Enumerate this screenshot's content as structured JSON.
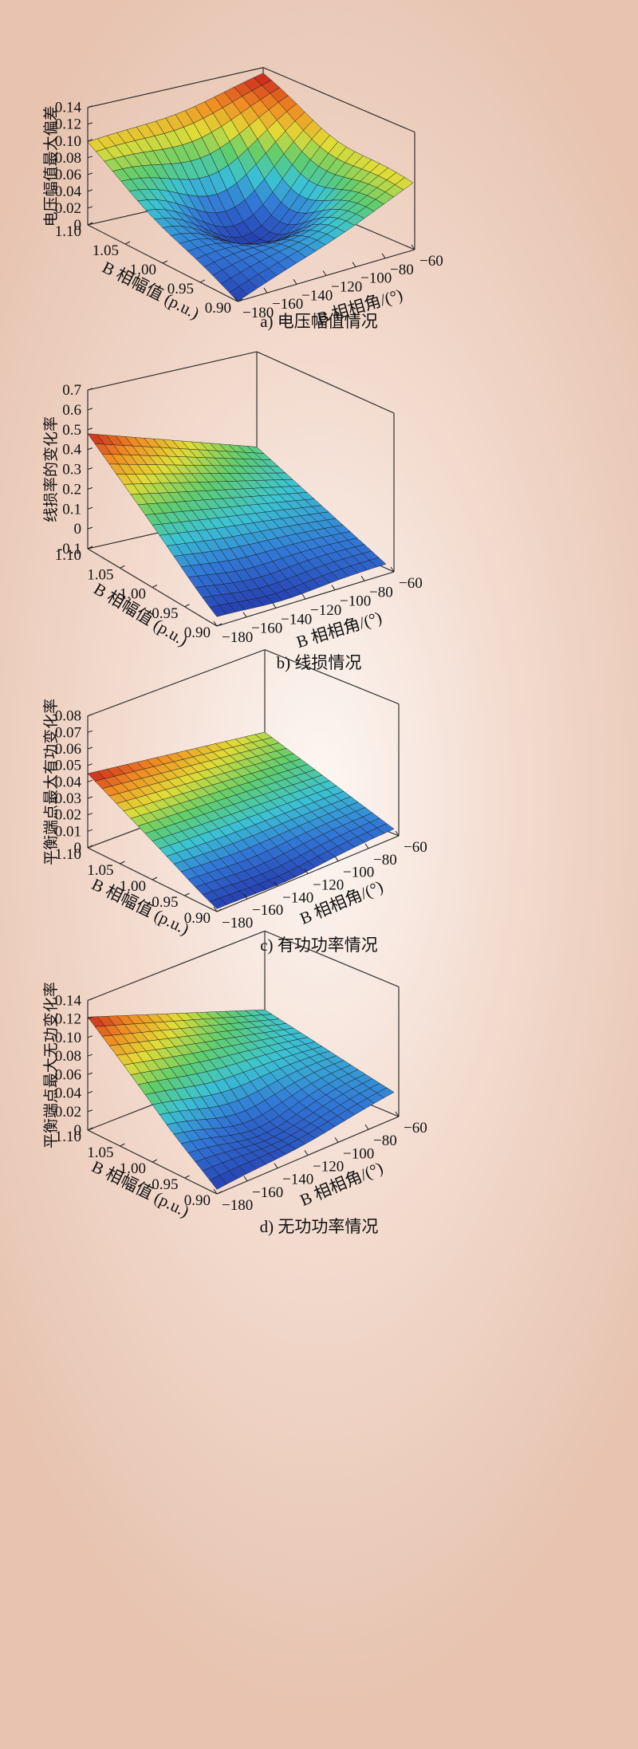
{
  "chart_data": [
    {
      "type": "surface3d",
      "caption": "a) 电压幅值情况",
      "zlabel": "电压幅值最大偏差",
      "xlabel": "B 相幅值 (p.u.)",
      "ylabel": "B 相相角/(°)",
      "x_ticks": [
        "1.10",
        "1.05",
        "1.00",
        "0.95",
        "0.90"
      ],
      "y_ticks": [
        "-180",
        "-160",
        "-140",
        "-120",
        "-100",
        "-80",
        "-60"
      ],
      "z_ticks": [
        "0",
        "0.02",
        "0.04",
        "0.06",
        "0.08",
        "0.10",
        "0.12",
        "0.14"
      ],
      "xlim": [
        0.9,
        1.1
      ],
      "ylim": [
        -180,
        -60
      ],
      "zlim": [
        0,
        0.14
      ],
      "shape": "valley",
      "surface_corners": {
        "x1.10_y-180": 0.1,
        "x1.10_y-60": 0.135,
        "x0.90_y-60": 0.095,
        "x0.90_y-180": 0.0
      },
      "min_point": {
        "x": 1.0,
        "y": -120,
        "z": 0.0
      }
    },
    {
      "type": "surface3d",
      "caption": "b) 线损情况",
      "zlabel": "线损率的变化率",
      "xlabel": "B 相幅值 (p.u.)",
      "ylabel": "B 相相角/(°)",
      "x_ticks": [
        "1.10",
        "1.05",
        "1.00",
        "0.95",
        "0.90"
      ],
      "y_ticks": [
        "-180",
        "-160",
        "-140",
        "-120",
        "-100",
        "-80",
        "-60"
      ],
      "z_ticks": [
        "-0.1",
        "0",
        "0.1",
        "0.2",
        "0.3",
        "0.4",
        "0.5",
        "0.6",
        "0.7"
      ],
      "xlim": [
        0.9,
        1.1
      ],
      "ylim": [
        -180,
        -60
      ],
      "zlim": [
        -0.1,
        0.7
      ],
      "shape": "slope",
      "surface_corners": {
        "x1.10_y-180": 0.48,
        "x1.10_y-60": 0.22,
        "x0.90_y-60": 0.02,
        "x0.90_y-180": -0.05
      },
      "min_point": {
        "x": 0.9,
        "y": -140,
        "z": -0.07
      }
    },
    {
      "type": "surface3d",
      "caption": "c) 有功功率情况",
      "zlabel": "平衡端点最大有功变化率",
      "xlabel": "B 相幅值 (p.u.)",
      "ylabel": "B 相相角/(°)",
      "x_ticks": [
        "1.10",
        "1.05",
        "1.00",
        "0.95",
        "0.90"
      ],
      "y_ticks": [
        "-180",
        "-160",
        "-140",
        "-120",
        "-100",
        "-80",
        "-60"
      ],
      "z_ticks": [
        "0",
        "0.01",
        "0.02",
        "0.03",
        "0.04",
        "0.05",
        "0.06",
        "0.07",
        "0.08"
      ],
      "xlim": [
        0.9,
        1.1
      ],
      "ylim": [
        -180,
        -60
      ],
      "zlim": [
        0,
        0.08
      ],
      "shape": "slope",
      "surface_corners": {
        "x1.10_y-180": 0.045,
        "x1.10_y-60": 0.03,
        "x0.90_y-60": 0.01,
        "x0.90_y-180": 0.002
      },
      "min_point": {
        "x": 0.9,
        "y": -140,
        "z": 0.0
      }
    },
    {
      "type": "surface3d",
      "caption": "d) 无功功率情况",
      "zlabel": "平衡端点最大无功变化率",
      "xlabel": "B 相幅值 (p.u.)",
      "ylabel": "B 相相角/(°)",
      "x_ticks": [
        "1.10",
        "1.05",
        "1.00",
        "0.95",
        "0.90"
      ],
      "y_ticks": [
        "-180",
        "-160",
        "-140",
        "-120",
        "-100",
        "-80",
        "-60"
      ],
      "z_ticks": [
        "0",
        "0.02",
        "0.04",
        "0.06",
        "0.08",
        "0.10",
        "0.12",
        "0.14"
      ],
      "xlim": [
        0.9,
        1.1
      ],
      "ylim": [
        -180,
        -60
      ],
      "zlim": [
        0,
        0.14
      ],
      "shape": "slope",
      "surface_corners": {
        "x1.10_y-180": 0.122,
        "x1.10_y-60": 0.055,
        "x0.90_y-60": 0.035,
        "x0.90_y-180": 0.005
      },
      "min_point": {
        "x": 0.95,
        "y": -130,
        "z": 0.0
      }
    }
  ]
}
